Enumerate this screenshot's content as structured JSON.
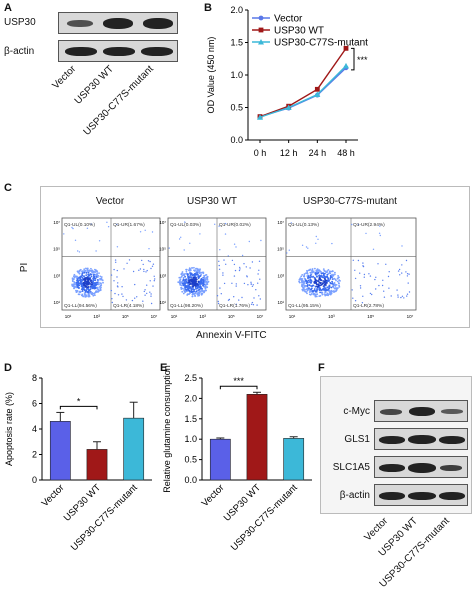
{
  "panels": {
    "A": "A",
    "B": "B",
    "C": "C",
    "D": "D",
    "E": "E",
    "F": "F"
  },
  "panelA": {
    "proteins": [
      "USP30",
      "β-actin"
    ],
    "lanes": [
      "Vector",
      "USP30 WT",
      "USP30-C77S-mutant"
    ]
  },
  "panelF": {
    "proteins": [
      "c-Myc",
      "GLS1",
      "SLC1A5",
      "β-actin"
    ],
    "lanes": [
      "Vector",
      "USP30 WT",
      "USP30-C77S-mutant"
    ]
  },
  "panelC": {
    "titles": [
      "Vector",
      "USP30 WT",
      "USP30-C77S-mutant"
    ],
    "ylabel": "PI",
    "xlabel": "Annexin V-FITC",
    "quadrants": [
      {
        "ul": "Q1-UL(0.10%)",
        "ur": "Q1-UR(1.67%)",
        "ll": "Q1-LL(94.56%)",
        "lr": "Q1-LR(4.18%)"
      },
      {
        "ul": "Q1-UL(0.03%)",
        "ur": "Q1-UR(0.02%)",
        "ll": "Q1-LL(98.20%)",
        "lr": "Q1-LR(1.76%)"
      },
      {
        "ul": "Q1-UL(0.13%)",
        "ur": "Q1-UR(2.94%)",
        "ll": "Q1-LL(95.15%)",
        "lr": "Q1-LR(2.78%)"
      }
    ],
    "ticks": [
      "10¹",
      "10³",
      "10⁵",
      "10⁷"
    ]
  },
  "chart_data": [
    {
      "panel": "B",
      "type": "line",
      "categories": [
        "0 h",
        "12 h",
        "24 h",
        "48 h"
      ],
      "series": [
        {
          "name": "Vector",
          "values": [
            0.36,
            0.49,
            0.69,
            1.11
          ],
          "color": "#5a78e8"
        },
        {
          "name": "USP30 WT",
          "values": [
            0.36,
            0.52,
            0.78,
            1.41
          ],
          "color": "#a01818"
        },
        {
          "name": "USP30-C77S-mutant",
          "values": [
            0.35,
            0.5,
            0.7,
            1.14
          ],
          "color": "#3cb8d8"
        }
      ],
      "ylabel": "OD Value (450 nm)",
      "ylim": [
        0.0,
        2.0
      ],
      "yticks": [
        "0.0",
        "0.5",
        "1.0",
        "1.5",
        "2.0"
      ],
      "annotation": "***",
      "legend": "top-left"
    },
    {
      "panel": "D",
      "type": "bar",
      "categories": [
        "Vector",
        "USP30 WT",
        "USP30-C77S-mutant"
      ],
      "values": [
        4.6,
        2.4,
        4.85
      ],
      "errors": [
        0.7,
        0.6,
        1.25
      ],
      "colors": [
        "#5a60e8",
        "#a01818",
        "#3cb8d8"
      ],
      "ylabel": "Apoptosis rate (%)",
      "ylim": [
        0,
        8
      ],
      "yticks": [
        "0",
        "2",
        "4",
        "6",
        "8"
      ],
      "annotation": "*"
    },
    {
      "panel": "E",
      "type": "bar",
      "categories": [
        "Vector",
        "USP30 WT",
        "USP30-C77S-mutant"
      ],
      "values": [
        1.0,
        2.1,
        1.02
      ],
      "errors": [
        0.03,
        0.05,
        0.04
      ],
      "colors": [
        "#5a60e8",
        "#a01818",
        "#3cb8d8"
      ],
      "ylabel": "Relative glutamine consumption",
      "ylim": [
        0.0,
        2.5
      ],
      "yticks": [
        "0.0",
        "0.5",
        "1.0",
        "1.5",
        "2.0",
        "2.5"
      ],
      "annotation": "***"
    }
  ]
}
